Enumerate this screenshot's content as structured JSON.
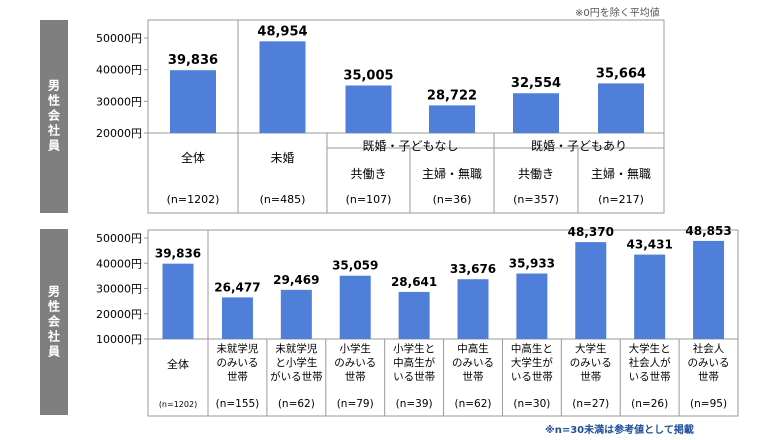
{
  "top_note": "※0円を除く平均値",
  "bottom_note": "※n=30未満は参考値として掲載",
  "side_label_top": "男性会社員",
  "side_label_bottom": "男性会社員",
  "colors": {
    "bar": "#4f7fd8",
    "side": "#7f7f7f",
    "note_blue": "#1f4e9b"
  },
  "chart_data": [
    {
      "type": "bar",
      "ylim": [
        20000,
        50000
      ],
      "yticks": [
        "20000円",
        "30000円",
        "40000円",
        "50000円"
      ],
      "ytick_values": [
        20000,
        30000,
        40000,
        50000
      ],
      "categories": [
        "全体",
        "未婚",
        "共働き",
        "主婦・無職",
        "共働き",
        "主婦・無職"
      ],
      "values": [
        39836,
        48954,
        35005,
        28722,
        32554,
        35664
      ],
      "value_labels": [
        "39,836",
        "48,954",
        "35,005",
        "28,722",
        "32,554",
        "35,664"
      ],
      "group_labels": [
        "既婚・子どもなし",
        "既婚・子どもあり"
      ],
      "n_labels": [
        "(n=1202)",
        "(n=485)",
        "(n=107)",
        "(n=36)",
        "(n=357)",
        "(n=217)"
      ]
    },
    {
      "type": "bar",
      "ylim": [
        10000,
        50000
      ],
      "yticks": [
        "10000円",
        "20000円",
        "30000円",
        "40000円",
        "50000円"
      ],
      "ytick_values": [
        10000,
        20000,
        30000,
        40000,
        50000
      ],
      "categories": [
        [
          "全体"
        ],
        [
          "未就学児",
          "のみいる",
          "世帯"
        ],
        [
          "未就学児",
          "と小学生",
          "がいる世帯"
        ],
        [
          "小学生",
          "のみいる",
          "世帯"
        ],
        [
          "小学生と",
          "中高生が",
          "いる世帯"
        ],
        [
          "中高生",
          "のみいる",
          "世帯"
        ],
        [
          "中高生と",
          "大学生が",
          "いる世帯"
        ],
        [
          "大学生",
          "のみいる",
          "世帯"
        ],
        [
          "大学生と",
          "社会人が",
          "いる世帯"
        ],
        [
          "社会人",
          "のみいる",
          "世帯"
        ]
      ],
      "values": [
        39836,
        26477,
        29469,
        35059,
        28641,
        33676,
        35933,
        48370,
        43431,
        48853
      ],
      "value_labels": [
        "39,836",
        "26,477",
        "29,469",
        "35,059",
        "28,641",
        "33,676",
        "35,933",
        "48,370",
        "43,431",
        "48,853"
      ],
      "n_labels": [
        "(n=1202)",
        "(n=155)",
        "(n=62)",
        "(n=79)",
        "(n=39)",
        "(n=62)",
        "(n=30)",
        "(n=27)",
        "(n=26)",
        "(n=95)"
      ]
    }
  ]
}
